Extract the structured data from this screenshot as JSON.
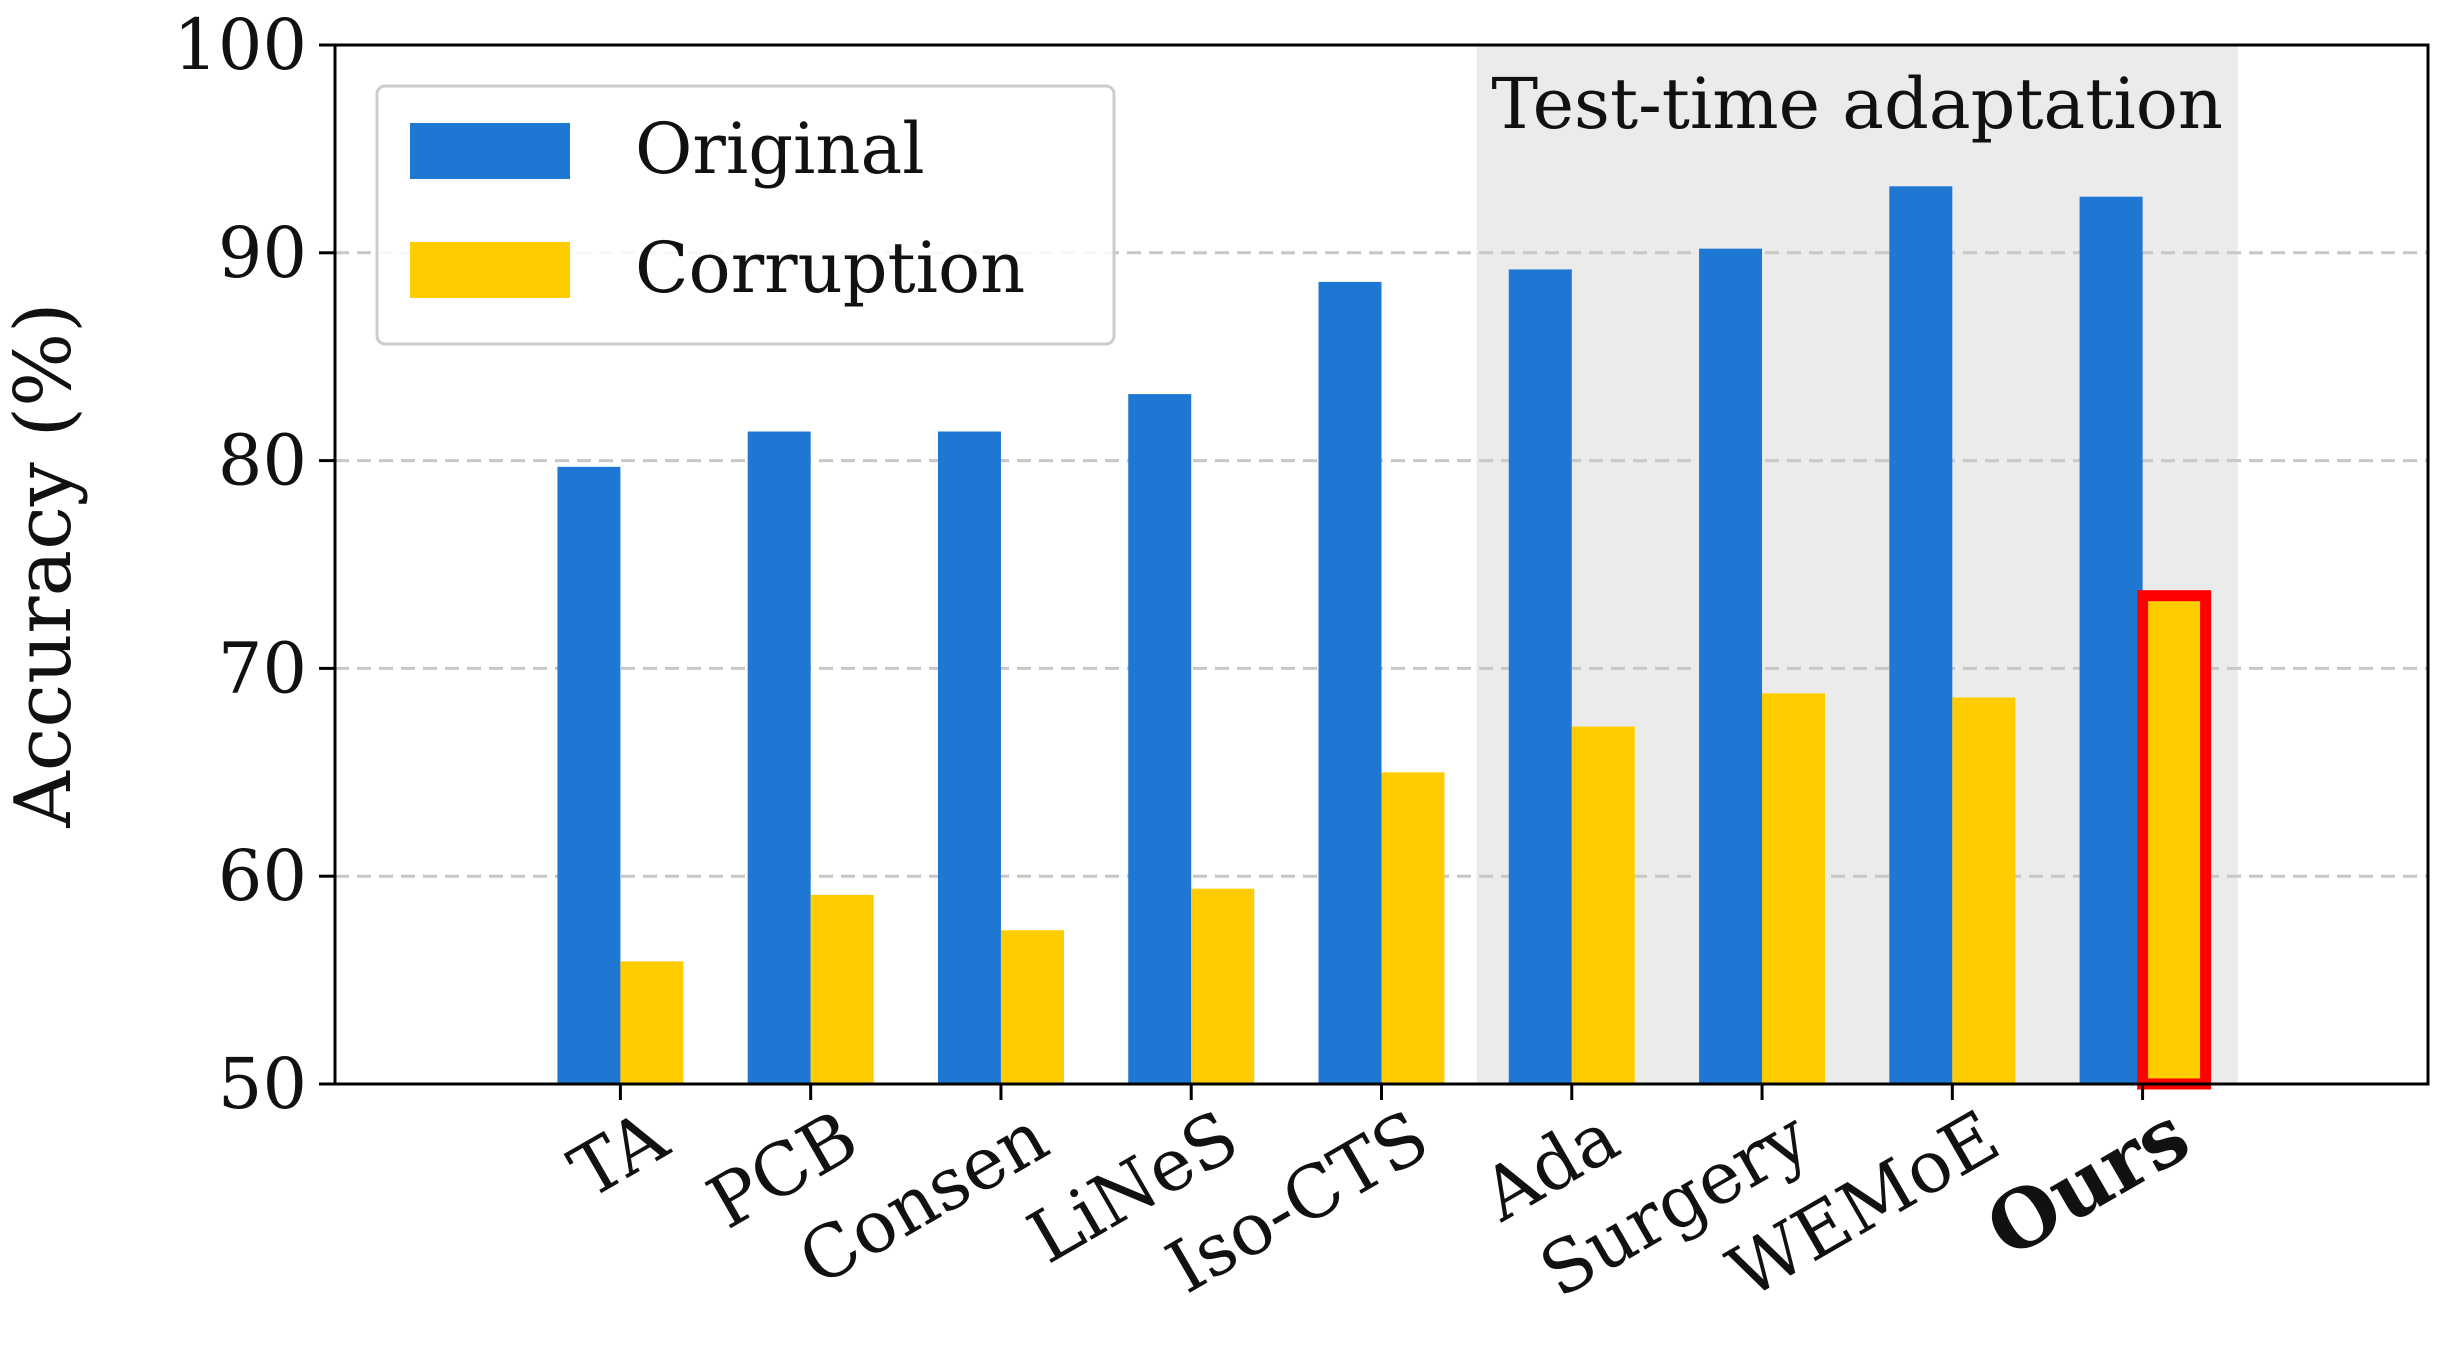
{
  "chart_data": {
    "type": "bar",
    "categories": [
      "TA",
      "PCB",
      "Consen",
      "LiNeS",
      "Iso-CTS",
      "Ada",
      "Surgery",
      "WEMoE",
      "Ours"
    ],
    "bold_category": "Ours",
    "highlight_category": "Ours",
    "highlight_series": "Corruption",
    "series": [
      {
        "name": "Original",
        "color": "#1f77d4",
        "values": [
          79.7,
          81.4,
          81.4,
          83.2,
          88.6,
          89.2,
          90.2,
          93.2,
          92.7
        ]
      },
      {
        "name": "Corruption",
        "color": "#ffcc00",
        "values": [
          55.9,
          59.1,
          57.4,
          59.4,
          65.0,
          67.2,
          68.8,
          68.6,
          73.5
        ]
      }
    ],
    "ylabel": "Accuracy (%)",
    "xlabel": "",
    "ylim": [
      50,
      100
    ],
    "yticks": [
      50,
      60,
      70,
      80,
      90,
      100
    ],
    "grid": "horizontal dashed",
    "legend_position": "top-left",
    "shaded_region": {
      "label": "Test-time adaptation",
      "start_category": "Ada",
      "end_category": "Ours",
      "color": "#ebebeb"
    },
    "highlight_color": "#ff0000"
  }
}
